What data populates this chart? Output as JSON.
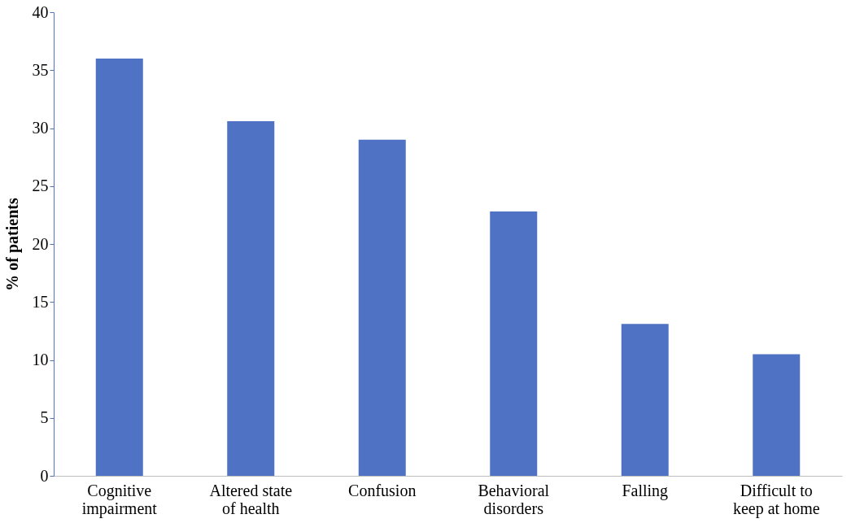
{
  "chart_data": {
    "type": "bar",
    "ylabel": "% of patients",
    "categories": [
      "Cognitive\nimpairment",
      "Altered state\nof health",
      "Confusion",
      "Behavioral\ndisorders",
      "Falling",
      "Difficult to\nkeep at home"
    ],
    "values": [
      36,
      30.6,
      29,
      22.8,
      13.1,
      10.5
    ],
    "color": "#4f72c4",
    "ylim": [
      0,
      40
    ],
    "yticks": [
      0,
      5,
      10,
      15,
      20,
      25,
      30,
      35,
      40
    ],
    "grid": false
  }
}
